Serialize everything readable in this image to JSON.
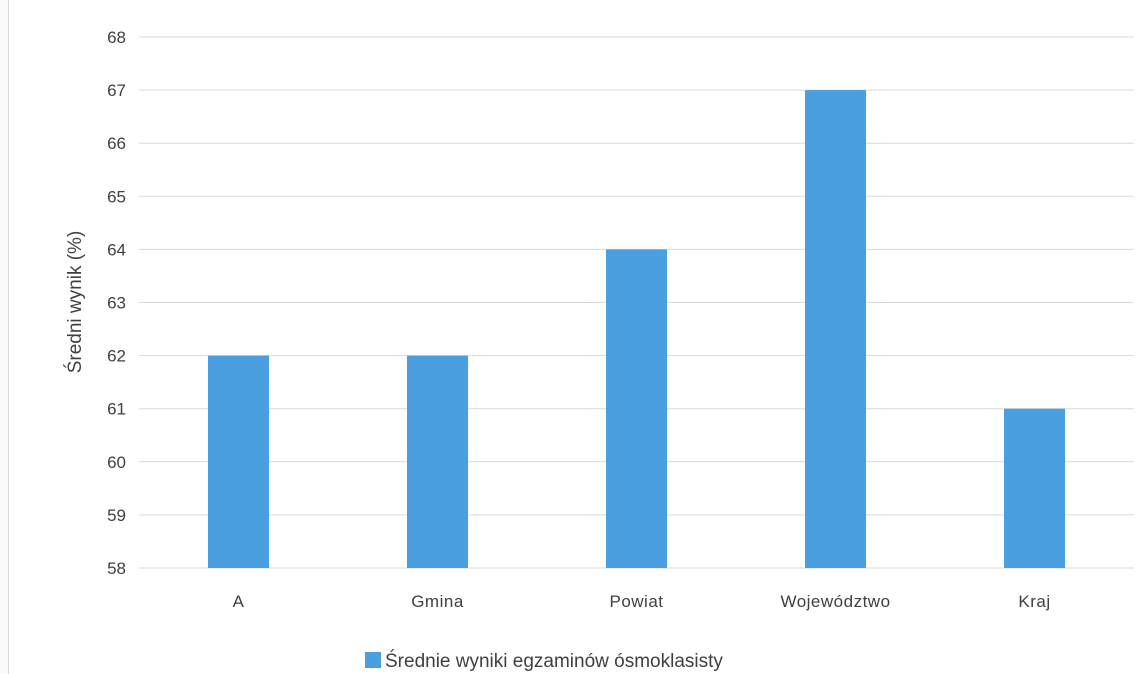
{
  "chart_data": {
    "type": "bar",
    "categories": [
      "A",
      "Gmina",
      "Powiat",
      "Województwo",
      "Kraj"
    ],
    "series": [
      {
        "name": "Średnie wyniki egzaminów ósmoklasisty",
        "values": [
          62,
          62,
          64,
          67,
          61
        ]
      }
    ],
    "ylabel": "Średni wynik (%)",
    "xlabel": "",
    "ylim": [
      58,
      68
    ],
    "yticks": [
      58,
      59,
      60,
      61,
      62,
      63,
      64,
      65,
      66,
      67,
      68
    ],
    "grid": true,
    "legend_position": "bottom",
    "colors": {
      "bar": "#4a9fe0",
      "grid": "#d9d9d9",
      "text": "#404040"
    }
  }
}
